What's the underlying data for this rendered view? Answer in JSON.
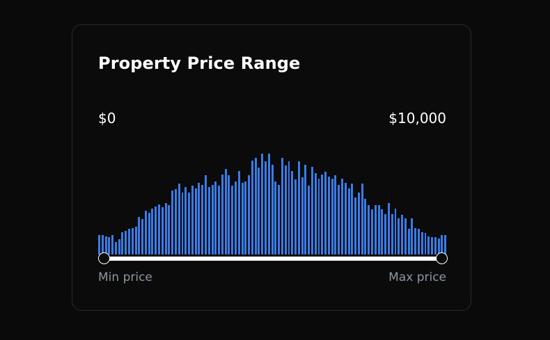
{
  "card": {
    "title": "Property Price Range"
  },
  "range": {
    "min_value_label": "$0",
    "max_value_label": "$10,000",
    "min_caption": "Min price",
    "max_caption": "Max price",
    "selected_min_fraction": 0,
    "selected_max_fraction": 1
  },
  "colors": {
    "bar": "#3b7be8",
    "track": "#ffffff"
  },
  "histogram": {
    "relative_heights": [
      0.18,
      0.18,
      0.17,
      0.16,
      0.18,
      0.12,
      0.14,
      0.21,
      0.22,
      0.24,
      0.25,
      0.26,
      0.35,
      0.33,
      0.41,
      0.39,
      0.43,
      0.45,
      0.47,
      0.44,
      0.48,
      0.46,
      0.6,
      0.61,
      0.66,
      0.58,
      0.63,
      0.58,
      0.64,
      0.62,
      0.67,
      0.65,
      0.74,
      0.63,
      0.65,
      0.68,
      0.64,
      0.75,
      0.8,
      0.74,
      0.64,
      0.68,
      0.78,
      0.67,
      0.68,
      0.74,
      0.88,
      0.9,
      0.81,
      0.94,
      0.87,
      0.94,
      0.84,
      0.68,
      0.65,
      0.9,
      0.83,
      0.87,
      0.78,
      0.7,
      0.87,
      0.72,
      0.84,
      0.64,
      0.82,
      0.76,
      0.71,
      0.75,
      0.77,
      0.73,
      0.71,
      0.74,
      0.65,
      0.71,
      0.67,
      0.62,
      0.66,
      0.53,
      0.58,
      0.66,
      0.52,
      0.46,
      0.42,
      0.46,
      0.46,
      0.42,
      0.38,
      0.48,
      0.38,
      0.43,
      0.34,
      0.37,
      0.34,
      0.24,
      0.34,
      0.25,
      0.24,
      0.21,
      0.2,
      0.17,
      0.16,
      0.16,
      0.15,
      0.18,
      0.18
    ]
  }
}
